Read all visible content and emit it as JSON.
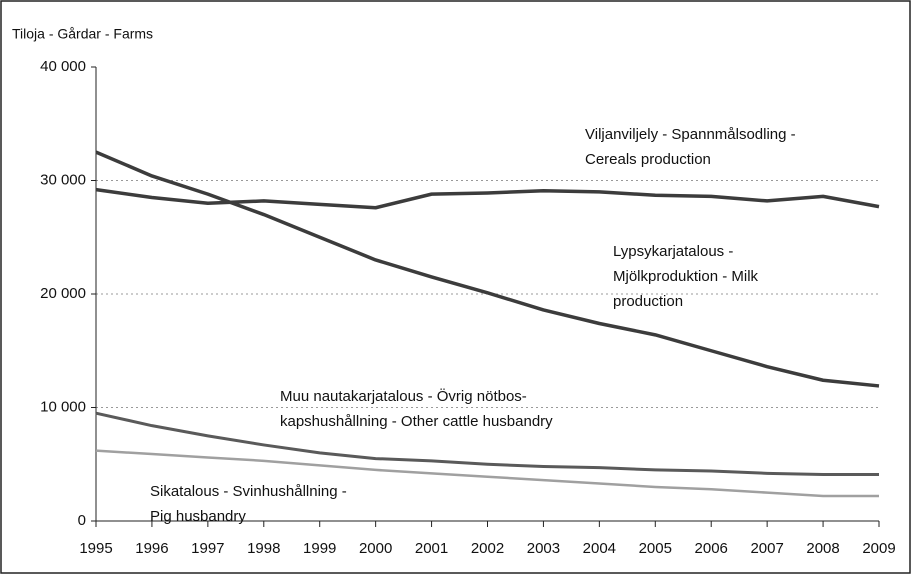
{
  "chart_data": {
    "type": "line",
    "ylabel": "Tiloja - Gårdar - Farms",
    "x": [
      1995,
      1996,
      1997,
      1998,
      1999,
      2000,
      2001,
      2002,
      2003,
      2004,
      2005,
      2006,
      2007,
      2008,
      2009
    ],
    "xlim": [
      1995,
      2009
    ],
    "xticks": [
      1995,
      1996,
      1997,
      1998,
      1999,
      2000,
      2001,
      2002,
      2003,
      2004,
      2005,
      2006,
      2007,
      2008,
      2009
    ],
    "ylim": [
      0,
      40000
    ],
    "yticks": [
      0,
      {
        "value": 10000,
        "label": "10 000"
      },
      {
        "value": 20000,
        "label": "20 000"
      },
      {
        "value": 30000,
        "label": "30 000"
      },
      {
        "value": 40000,
        "label": "40 000"
      }
    ],
    "grid": true,
    "series": [
      {
        "name": [
          "Viljanviljely - Spannmålsodling -",
          "Cereals production"
        ],
        "color": "#3c3c3c",
        "values": [
          29200,
          28500,
          28000,
          28200,
          27900,
          27600,
          28800,
          28900,
          29100,
          29000,
          28700,
          28600,
          28200,
          28600,
          27700
        ]
      },
      {
        "name": [
          "Lypsykarjatalous -",
          "Mjölkproduktion - Milk",
          "production"
        ],
        "color": "#3c3c3c",
        "values": [
          32500,
          30400,
          28800,
          27000,
          25000,
          23000,
          21500,
          20100,
          18600,
          17400,
          16400,
          15000,
          13600,
          12400,
          11900
        ]
      },
      {
        "name": [
          "Muu nautakarjatalous - Övrig nötbos-",
          "kapshushållning - Other cattle husbandry"
        ],
        "color": "#5a5a5a",
        "values": [
          9500,
          8400,
          7500,
          6700,
          6000,
          5500,
          5300,
          5000,
          4800,
          4700,
          4500,
          4400,
          4200,
          4100,
          4100
        ]
      },
      {
        "name": [
          "Sikatalous - Svinhushållning -",
          "Pig husbandry"
        ],
        "color": "#a0a0a0",
        "values": [
          6200,
          5900,
          5600,
          5300,
          4900,
          4500,
          4200,
          3900,
          3600,
          3300,
          3000,
          2800,
          2500,
          2200,
          2200
        ]
      }
    ]
  }
}
